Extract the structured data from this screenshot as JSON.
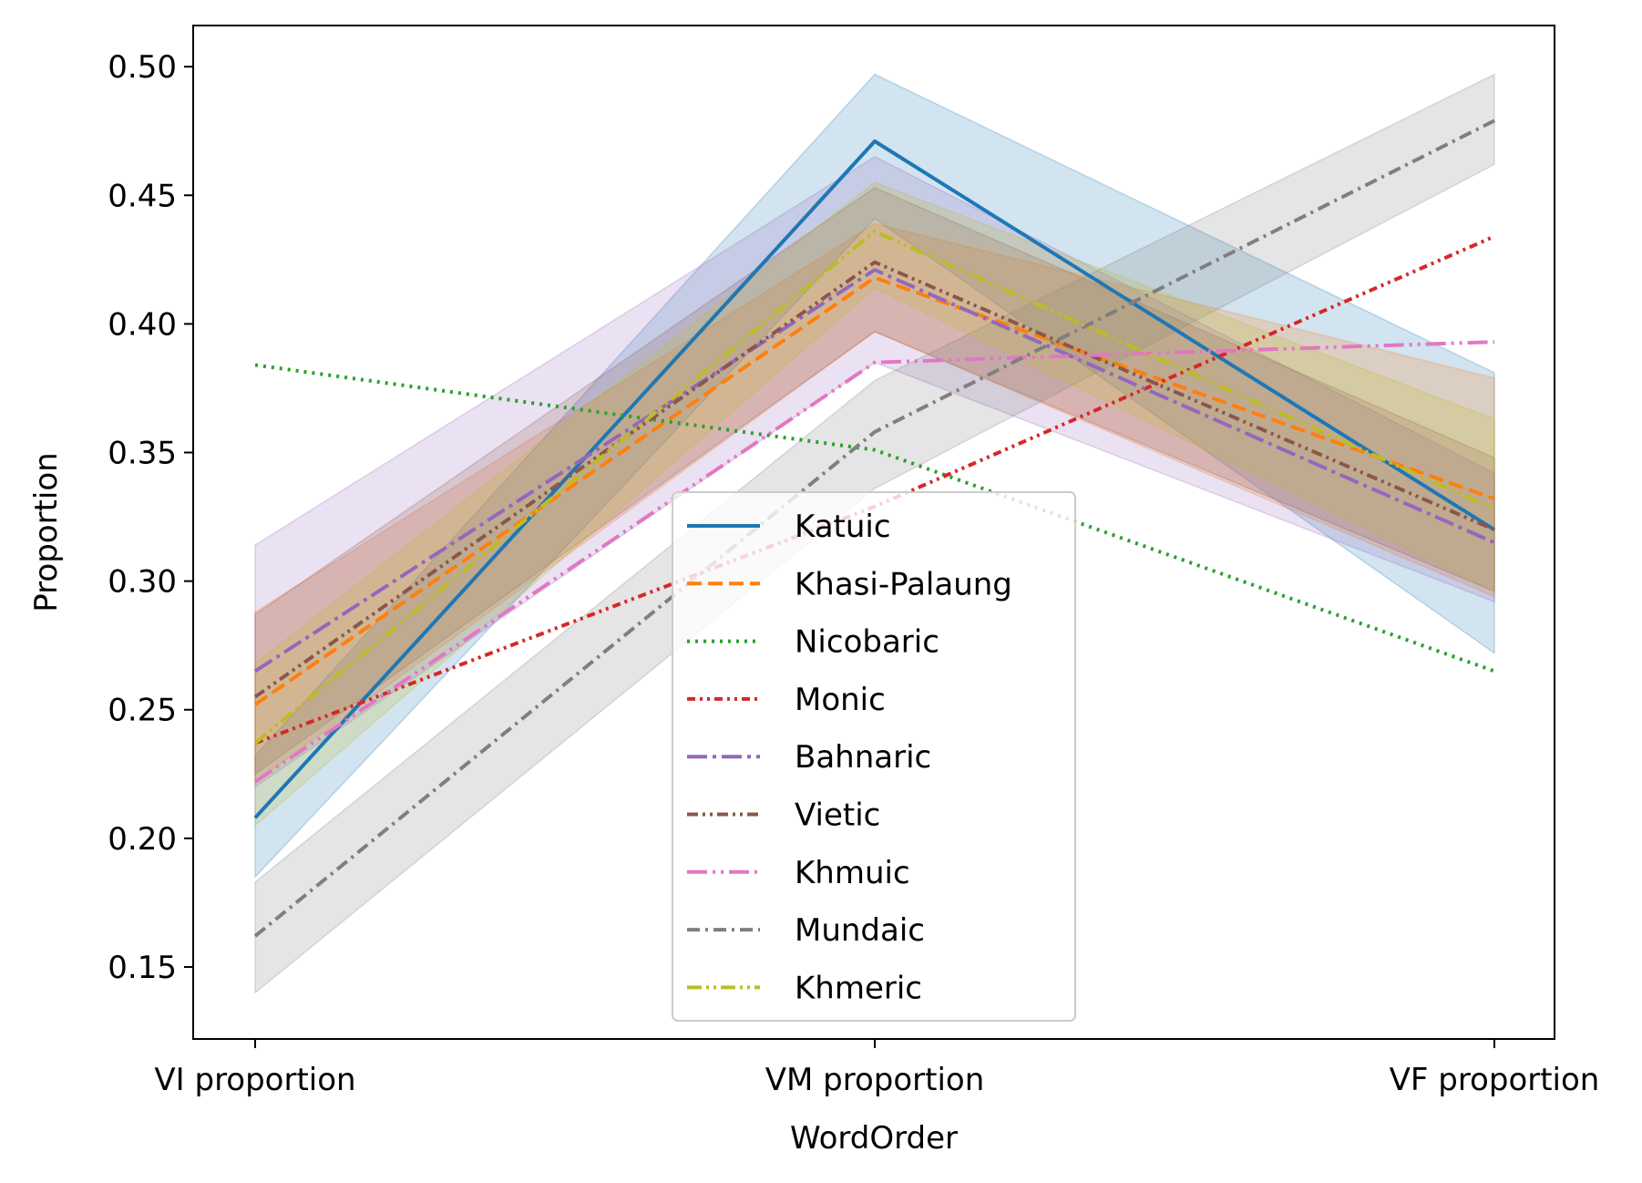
{
  "chart_data": {
    "type": "line",
    "title": "",
    "xlabel": "WordOrder",
    "ylabel": "Proportion",
    "categories": [
      "VI proportion",
      "VM proportion",
      "VF proportion"
    ],
    "ylim": [
      0.122,
      0.516
    ],
    "yticks": [
      "0.15",
      "0.20",
      "0.25",
      "0.30",
      "0.35",
      "0.40",
      "0.45",
      "0.50"
    ],
    "legend_position": "lower-center",
    "grid": false,
    "series": [
      {
        "name": "Katuic",
        "values": [
          0.208,
          0.471,
          0.32
        ],
        "lower": [
          0.185,
          0.441,
          0.272
        ],
        "upper": [
          0.232,
          0.497,
          0.381
        ],
        "color": "#1f77b4",
        "dash": ""
      },
      {
        "name": "Khasi-Palaung",
        "values": [
          0.252,
          0.418,
          0.332
        ],
        "lower": [
          0.222,
          0.397,
          0.294
        ],
        "upper": [
          0.288,
          0.439,
          0.379
        ],
        "color": "#ff7f0e",
        "dash": "16,7"
      },
      {
        "name": "Nicobaric",
        "values": [
          0.384,
          0.351,
          0.265
        ],
        "color": "#2ca02c",
        "dash": "3,6"
      },
      {
        "name": "Monic",
        "values": [
          0.237,
          0.329,
          0.434
        ],
        "color": "#d62728",
        "dash": "9,5,3,5,3,5"
      },
      {
        "name": "Bahnaric",
        "values": [
          0.265,
          0.421,
          0.315
        ],
        "lower": [
          0.22,
          0.385,
          0.292
        ],
        "upper": [
          0.314,
          0.465,
          0.342
        ],
        "color": "#9467bd",
        "dash": "22,6,4,6"
      },
      {
        "name": "Vietic",
        "values": [
          0.255,
          0.424,
          0.32
        ],
        "lower": [
          0.225,
          0.397,
          0.296
        ],
        "upper": [
          0.287,
          0.453,
          0.348
        ],
        "color": "#8c564b",
        "dash": "12,5,3,5,3,5"
      },
      {
        "name": "Khmuic",
        "values": [
          0.222,
          0.385,
          0.393
        ],
        "color": "#e377c2",
        "dash": "22,6,3,6,3,6"
      },
      {
        "name": "Mundaic",
        "values": [
          0.162,
          0.358,
          0.479
        ],
        "lower": [
          0.14,
          0.336,
          0.462
        ],
        "upper": [
          0.183,
          0.378,
          0.497
        ],
        "color": "#7f7f7f",
        "dash": "14,6,3,6"
      },
      {
        "name": "Khmeric",
        "values": [
          0.237,
          0.436,
          0.328
        ],
        "lower": [
          0.205,
          0.414,
          0.296
        ],
        "upper": [
          0.268,
          0.455,
          0.363
        ],
        "color": "#bcbd22",
        "dash": "16,5,3,5,3,5"
      }
    ]
  }
}
